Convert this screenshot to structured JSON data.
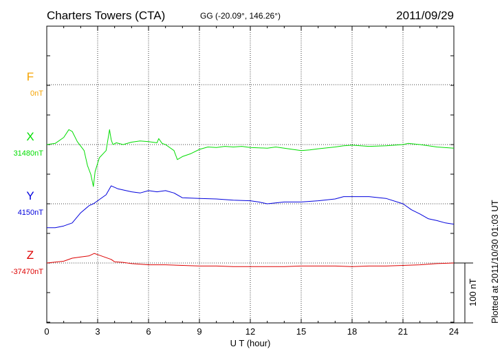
{
  "chart_data": {
    "type": "line",
    "title": "Charters Towers (CTA)",
    "subtitle": "GG (-20.09°, 146.26°)",
    "date": "2011/09/29",
    "xlabel": "U T (hour)",
    "xlim": [
      0,
      24
    ],
    "x_ticks": [
      "0",
      "3",
      "6",
      "9",
      "12",
      "15",
      "18",
      "21",
      "24"
    ],
    "scale_bar_label": "100 nT",
    "plotted_note": "Plotted at 2011/10/30 01:03 UT",
    "grid": true,
    "series": [
      {
        "name": "F",
        "baseline_label": "0nT",
        "color": "#f5a300",
        "values": []
      },
      {
        "name": "X",
        "baseline_label": "31480nT",
        "color": "#00dd00",
        "x": [
          0,
          0.5,
          1.0,
          1.3,
          1.5,
          1.8,
          2.2,
          2.4,
          2.6,
          2.75,
          2.85,
          3.1,
          3.5,
          3.7,
          3.8,
          3.9,
          4.1,
          4.5,
          5.0,
          5.5,
          6.0,
          6.5,
          6.6,
          6.8,
          7.0,
          7.5,
          7.7,
          8.0,
          8.5,
          9.0,
          9.5,
          10.0,
          10.5,
          11.0,
          11.5,
          12.0,
          13.0,
          13.5,
          14.0,
          15.0,
          15.5,
          16.0,
          17.0,
          17.5,
          18.0,
          19.0,
          20.0,
          21.0,
          21.3,
          22.0,
          23.0,
          24.0
        ],
        "values": [
          0,
          2,
          12,
          25,
          22,
          5,
          -10,
          -35,
          -50,
          -70,
          -45,
          -22,
          -10,
          25,
          8,
          0,
          3,
          0,
          4,
          6,
          5,
          3,
          10,
          2,
          0,
          -10,
          -25,
          -20,
          -15,
          -8,
          -4,
          -5,
          -3,
          -4,
          -3,
          -5,
          -6,
          -4,
          -6,
          -10,
          -9,
          -7,
          -4,
          -2,
          -1,
          -3,
          -2,
          0,
          2,
          0,
          -4,
          -6
        ]
      },
      {
        "name": "Y",
        "baseline_label": "4150nT",
        "color": "#0000dd",
        "x": [
          0,
          0.5,
          1.0,
          1.5,
          2.0,
          2.5,
          2.75,
          3.0,
          3.5,
          3.8,
          4.2,
          5.0,
          5.5,
          6.0,
          6.5,
          7.0,
          7.5,
          8.0,
          9.0,
          10.0,
          11.0,
          12.0,
          12.5,
          13.0,
          14.0,
          15.0,
          16.0,
          17.0,
          17.5,
          18.0,
          19.0,
          20.0,
          21.0,
          21.5,
          22.0,
          22.5,
          23.0,
          23.5,
          24.0
        ],
        "values": [
          -40,
          -40,
          -37,
          -32,
          -15,
          -3,
          0,
          5,
          15,
          30,
          25,
          20,
          18,
          22,
          20,
          22,
          18,
          10,
          9,
          8,
          6,
          5,
          3,
          0,
          3,
          3,
          5,
          8,
          12,
          12,
          12,
          9,
          0,
          -10,
          -17,
          -25,
          -28,
          -32,
          -34
        ]
      },
      {
        "name": "Z",
        "baseline_label": "-37470nT",
        "color": "#dd0000",
        "x": [
          0,
          1.0,
          1.5,
          2.0,
          2.5,
          2.8,
          3.0,
          3.5,
          3.8,
          4.0,
          4.5,
          5.0,
          5.5,
          6.0,
          7.0,
          8.0,
          9.0,
          10.0,
          11.0,
          12.0,
          13.0,
          14.0,
          15.0,
          16.0,
          17.0,
          18.0,
          19.0,
          20.0,
          21.0,
          22.0,
          23.0,
          24.0
        ],
        "values": [
          0,
          3,
          8,
          10,
          12,
          16,
          14,
          9,
          6,
          2,
          1,
          -1,
          -2,
          -3,
          -3,
          -4,
          -5,
          -5,
          -6,
          -6,
          -6,
          -6,
          -5,
          -5,
          -5,
          -6,
          -5,
          -5,
          -4,
          -3,
          -1,
          0
        ]
      }
    ]
  }
}
